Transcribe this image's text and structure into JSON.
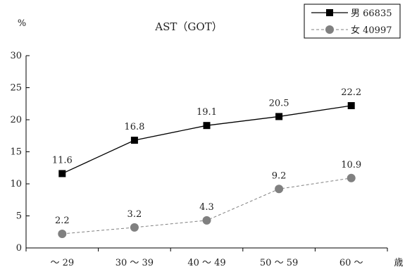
{
  "chart_data": {
    "type": "line",
    "title": "AST（GOT）",
    "ylabel": "%",
    "xlabel": "歳",
    "ylim": [
      0,
      30
    ],
    "yticks": [
      0,
      5,
      10,
      15,
      20,
      25,
      30
    ],
    "grid": false,
    "legend_position": "top-right",
    "categories": [
      "～ 29",
      "30 ～ 39",
      "40 ～ 49",
      "50 ～ 59",
      "60 ～"
    ],
    "series": [
      {
        "name": "男 66835",
        "values": [
          11.6,
          16.8,
          19.1,
          20.5,
          22.2
        ],
        "labels": [
          "11.6",
          "16.8",
          "19.1",
          "20.5",
          "22.2"
        ],
        "color": "#000000",
        "marker": "square",
        "line": "solid"
      },
      {
        "name": "女 40997",
        "values": [
          2.2,
          3.2,
          4.3,
          9.2,
          10.9
        ],
        "labels": [
          "2.2",
          "3.2",
          "4.3",
          "9.2",
          "10.9"
        ],
        "color": "#808080",
        "marker": "circle",
        "line": "dashed"
      }
    ]
  }
}
